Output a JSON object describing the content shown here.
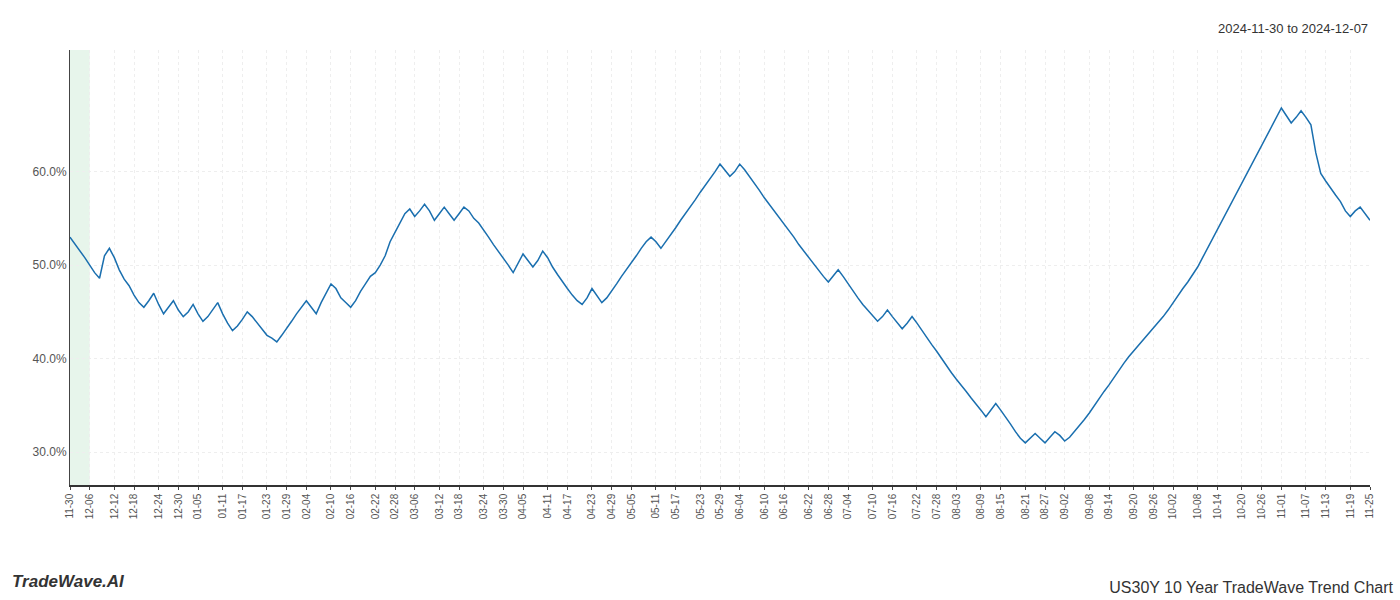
{
  "chart_data": {
    "type": "line",
    "title": "US30Y 10 Year TradeWave Trend Chart",
    "subtitle": "2024-11-30 to 2024-12-07",
    "annotations": [
      "TradeWave.AI"
    ],
    "color": "#1a6faf",
    "grid": true,
    "shade": {
      "from": "11-30",
      "to": "12-06",
      "color": "#d4edda"
    },
    "ylim": [
      0.265,
      0.73
    ],
    "yticks": [
      {
        "value": 0.3,
        "label": "30.0%"
      },
      {
        "value": 0.4,
        "label": "40.0%"
      },
      {
        "value": 0.5,
        "label": "50.0%"
      },
      {
        "value": 0.6,
        "label": "60.0%"
      }
    ],
    "categories": [
      "11-30",
      null,
      null,
      null,
      "12-06",
      null,
      null,
      null,
      null,
      "12-12",
      null,
      null,
      null,
      "12-18",
      null,
      null,
      null,
      null,
      "12-24",
      null,
      null,
      null,
      "12-30",
      null,
      null,
      null,
      "01-05",
      null,
      null,
      null,
      null,
      "01-11",
      null,
      null,
      null,
      "01-17",
      null,
      null,
      null,
      null,
      "01-23",
      null,
      null,
      null,
      "01-29",
      null,
      null,
      null,
      "02-04",
      null,
      null,
      null,
      null,
      "02-10",
      null,
      null,
      null,
      "02-16",
      null,
      null,
      null,
      null,
      "02-22",
      null,
      null,
      null,
      "02-28",
      null,
      null,
      null,
      "03-06",
      null,
      null,
      null,
      null,
      "03-12",
      null,
      null,
      null,
      "03-18",
      null,
      null,
      null,
      null,
      "03-24",
      null,
      null,
      null,
      "03-30",
      null,
      null,
      null,
      "04-05",
      null,
      null,
      null,
      null,
      "04-11",
      null,
      null,
      null,
      "04-17",
      null,
      null,
      null,
      null,
      "04-23",
      null,
      null,
      null,
      "04-29",
      null,
      null,
      null,
      "05-05",
      null,
      null,
      null,
      null,
      "05-11",
      null,
      null,
      null,
      "05-17",
      null,
      null,
      null,
      null,
      "05-23",
      null,
      null,
      null,
      "05-29",
      null,
      null,
      null,
      "06-04",
      null,
      null,
      null,
      null,
      "06-10",
      null,
      null,
      null,
      "06-16",
      null,
      null,
      null,
      null,
      "06-22",
      null,
      null,
      null,
      "06-28",
      null,
      null,
      null,
      "07-04",
      null,
      null,
      null,
      null,
      "07-10",
      null,
      null,
      null,
      "07-16",
      null,
      null,
      null,
      null,
      "07-22",
      null,
      null,
      null,
      "07-28",
      null,
      null,
      null,
      "08-03",
      null,
      null,
      null,
      null,
      "08-09",
      null,
      null,
      null,
      "08-15",
      null,
      null,
      null,
      null,
      "08-21",
      null,
      null,
      null,
      "08-27",
      null,
      null,
      null,
      "09-02",
      null,
      null,
      null,
      null,
      "09-08",
      null,
      null,
      null,
      "09-14",
      null,
      null,
      null,
      null,
      "09-20",
      null,
      null,
      null,
      "09-26",
      null,
      null,
      null,
      "10-02",
      null,
      null,
      null,
      null,
      "10-08",
      null,
      null,
      null,
      "10-14",
      null,
      null,
      null,
      null,
      "10-20",
      null,
      null,
      null,
      "10-26",
      null,
      null,
      null,
      "11-01",
      null,
      null,
      null,
      null,
      "11-07",
      null,
      null,
      null,
      "11-13",
      null,
      null,
      null,
      null,
      "11-19",
      null,
      null,
      null,
      "11-25"
    ],
    "values": [
      0.53,
      0.523,
      0.515,
      0.508,
      0.5,
      0.492,
      0.486,
      0.51,
      0.518,
      0.508,
      0.495,
      0.485,
      0.478,
      0.468,
      0.46,
      0.455,
      0.462,
      0.47,
      0.458,
      0.448,
      0.455,
      0.462,
      0.452,
      0.445,
      0.45,
      0.458,
      0.448,
      0.44,
      0.445,
      0.452,
      0.46,
      0.448,
      0.438,
      0.43,
      0.435,
      0.442,
      0.45,
      0.445,
      0.438,
      0.432,
      0.425,
      0.422,
      0.418,
      0.425,
      0.432,
      0.44,
      0.448,
      0.455,
      0.462,
      0.455,
      0.448,
      0.46,
      0.47,
      0.48,
      0.475,
      0.465,
      0.46,
      0.455,
      0.462,
      0.472,
      0.48,
      0.488,
      0.492,
      0.5,
      0.51,
      0.525,
      0.535,
      0.545,
      0.555,
      0.56,
      0.552,
      0.558,
      0.565,
      0.558,
      0.548,
      0.555,
      0.562,
      0.555,
      0.548,
      0.555,
      0.562,
      0.558,
      0.55,
      0.545,
      0.538,
      0.53,
      0.522,
      0.515,
      0.508,
      0.5,
      0.492,
      0.502,
      0.512,
      0.505,
      0.498,
      0.505,
      0.515,
      0.508,
      0.498,
      0.49,
      0.482,
      0.475,
      0.468,
      0.462,
      0.458,
      0.465,
      0.475,
      0.468,
      0.46,
      0.465,
      0.472,
      0.48,
      0.488,
      0.495,
      0.502,
      0.51,
      0.518,
      0.525,
      0.53,
      0.525,
      0.518,
      0.525,
      0.532,
      0.54,
      0.548,
      0.555,
      0.562,
      0.57,
      0.578,
      0.585,
      0.592,
      0.6,
      0.608,
      0.602,
      0.595,
      0.6,
      0.608,
      0.602,
      0.595,
      0.588,
      0.58,
      0.572,
      0.565,
      0.558,
      0.552,
      0.545,
      0.538,
      0.53,
      0.522,
      0.515,
      0.508,
      0.502,
      0.495,
      0.488,
      0.482,
      0.488,
      0.495,
      0.488,
      0.48,
      0.472,
      0.465,
      0.458,
      0.452,
      0.445,
      0.44,
      0.445,
      0.452,
      0.445,
      0.438,
      0.432,
      0.438,
      0.445,
      0.438,
      0.43,
      0.422,
      0.415,
      0.408,
      0.4,
      0.392,
      0.385,
      0.378,
      0.372,
      0.365,
      0.358,
      0.352,
      0.345,
      0.338,
      0.345,
      0.352,
      0.345,
      0.338,
      0.33,
      0.322,
      0.315,
      0.31,
      0.315,
      0.32,
      0.315,
      0.31,
      0.316,
      0.322,
      0.318,
      0.312,
      0.316,
      0.322,
      0.328,
      0.335,
      0.342,
      0.35,
      0.358,
      0.365,
      0.372,
      0.38,
      0.388,
      0.395,
      0.402,
      0.408,
      0.414,
      0.42,
      0.426,
      0.432,
      0.438,
      0.445,
      0.452,
      0.46,
      0.468,
      0.475,
      0.482,
      0.49,
      0.498,
      0.508,
      0.518,
      0.528,
      0.538,
      0.548,
      0.558,
      0.568,
      0.578,
      0.588,
      0.598,
      0.608,
      0.618,
      0.628,
      0.638,
      0.648,
      0.658,
      0.668,
      0.66,
      0.652,
      0.658,
      0.665,
      0.658,
      0.65,
      0.62,
      0.598,
      0.59,
      0.582,
      0.575,
      0.568,
      0.558,
      0.552,
      0.558,
      0.562,
      0.555,
      0.548
    ]
  }
}
